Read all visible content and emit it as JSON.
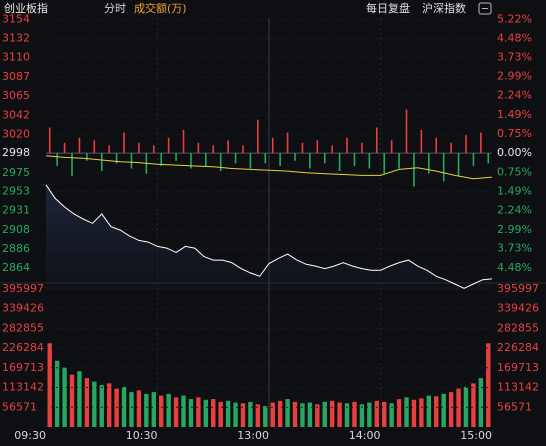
{
  "chart_data": {
    "type": "intraday",
    "title": "创业板指",
    "tabs": [
      "分时",
      "成交额(万)"
    ],
    "links": [
      "每日复盘",
      "沪深指数"
    ],
    "ylim": [
      2838,
      3156
    ],
    "yticks": [
      3154,
      3132,
      3110,
      3087,
      3065,
      3042,
      3020,
      2998,
      2975,
      2953,
      2931,
      2908,
      2886,
      2864
    ],
    "y2lim": [
      -5.34,
      5.27
    ],
    "y2ticks": [
      {
        "value": 5.22,
        "label": "5.22%"
      },
      {
        "value": 4.48,
        "label": "4.48%"
      },
      {
        "value": 3.73,
        "label": "3.73%"
      },
      {
        "value": 2.99,
        "label": "2.99%"
      },
      {
        "value": 2.24,
        "label": "2.24%"
      },
      {
        "value": 1.49,
        "label": "1.49%"
      },
      {
        "value": 0.75,
        "label": "0.75%"
      },
      {
        "value": 0,
        "label": "0.00%"
      },
      {
        "value": -0.75,
        "label": "0.75%"
      },
      {
        "value": -1.49,
        "label": "1.49%"
      },
      {
        "value": -2.24,
        "label": "2.24%"
      },
      {
        "value": -2.99,
        "label": "2.99%"
      },
      {
        "value": -3.73,
        "label": "3.73%"
      },
      {
        "value": -4.48,
        "label": "4.48%"
      }
    ],
    "up_color": "#e8403f",
    "down_color": "#27a862",
    "xticks": [
      "09:30",
      "10:30",
      "13:00",
      "14:00",
      "15:00"
    ],
    "price": {
      "color": "#ffffff",
      "values": [
        2961,
        2945,
        2935,
        2927,
        2921,
        2916,
        2927,
        2912,
        2908,
        2901,
        2896,
        2894,
        2889,
        2887,
        2882,
        2889,
        2887,
        2877,
        2873,
        2873,
        2870,
        2863,
        2858,
        2854,
        2869,
        2875,
        2880,
        2873,
        2868,
        2866,
        2863,
        2866,
        2870,
        2866,
        2863,
        2861,
        2861,
        2866,
        2870,
        2873,
        2866,
        2861,
        2854,
        2850,
        2845,
        2840,
        2845,
        2850,
        2851
      ]
    },
    "average": {
      "color": "#e6d23c",
      "values": [
        2995,
        2993,
        2992,
        2990,
        2988,
        2987,
        2985,
        2984,
        2983,
        2982,
        2980,
        2979,
        2978,
        2977,
        2975,
        2974,
        2973,
        2972,
        2972,
        2979,
        2981,
        2977,
        2972,
        2968,
        2970
      ]
    },
    "breadth": {
      "axis": "y2",
      "values": [
        1.0,
        -0.5,
        0.4,
        -0.9,
        0.6,
        -0.3,
        0.5,
        -0.7,
        0.3,
        -0.4,
        0.8,
        -0.6,
        0.4,
        -0.8,
        0.3,
        -0.5,
        0.6,
        -0.3,
        0.9,
        -0.6,
        0.4,
        -0.5,
        0.3,
        -0.7,
        0.5,
        -0.4,
        0.3,
        -0.6,
        1.3,
        -0.4,
        0.6,
        -0.5,
        0.8,
        -0.3,
        0.4,
        -0.6,
        0.5,
        -0.4,
        0.3,
        -0.7,
        0.6,
        -0.5,
        0.4,
        -0.6,
        1.0,
        -0.8,
        0.5,
        -0.6,
        1.7,
        -1.3,
        0.9,
        -0.8,
        0.6,
        -1.1,
        0.4,
        -0.9,
        0.7,
        -0.5,
        0.8,
        -0.4
      ]
    },
    "volume": {
      "ylim": [
        0,
        410000
      ],
      "yticks": [
        395997,
        339426,
        282855,
        226284,
        169713,
        113142,
        56571
      ],
      "values": [
        240000,
        190000,
        170000,
        150000,
        160000,
        140000,
        130000,
        120000,
        125000,
        110000,
        115000,
        100000,
        105000,
        95000,
        100000,
        90000,
        95000,
        85000,
        90000,
        80000,
        85000,
        78000,
        80000,
        72000,
        75000,
        70000,
        68000,
        72000,
        65000,
        60000,
        70000,
        75000,
        80000,
        72000,
        68000,
        70000,
        65000,
        72000,
        75000,
        70000,
        68000,
        72000,
        65000,
        70000,
        75000,
        72000,
        68000,
        80000,
        85000,
        78000,
        82000,
        90000,
        88000,
        95000,
        100000,
        110000,
        115000,
        125000,
        140000,
        240000
      ],
      "colors": [
        "#e8403f",
        "#27a862",
        "#27a862",
        "#e8403f",
        "#27a862",
        "#e8403f",
        "#27a862",
        "#27a862",
        "#e8403f",
        "#e8403f",
        "#27a862",
        "#27a862",
        "#e8403f",
        "#27a862",
        "#27a862",
        "#e8403f",
        "#27a862",
        "#e8403f",
        "#27a862",
        "#27a862",
        "#e8403f",
        "#27a862",
        "#e8403f",
        "#e8403f",
        "#27a862",
        "#27a862",
        "#e8403f",
        "#27a862",
        "#e8403f",
        "#27a862",
        "#e8403f",
        "#e8403f",
        "#27a862",
        "#e8403f",
        "#27a862",
        "#27a862",
        "#e8403f",
        "#27a862",
        "#e8403f",
        "#e8403f",
        "#27a862",
        "#e8403f",
        "#27a862",
        "#27a862",
        "#e8403f",
        "#e8403f",
        "#27a862",
        "#e8403f",
        "#27a862",
        "#e8403f",
        "#e8403f",
        "#27a862",
        "#e8403f",
        "#27a862",
        "#e8403f",
        "#e8403f",
        "#27a862",
        "#e8403f",
        "#27a862",
        "#e8403f"
      ]
    }
  }
}
